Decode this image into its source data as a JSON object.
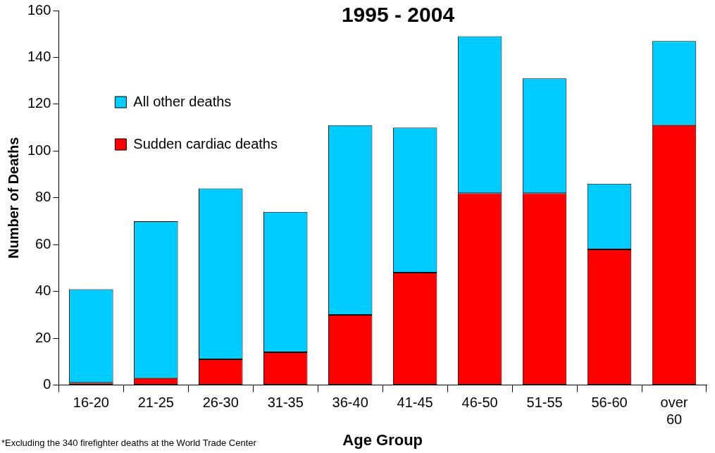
{
  "chart_data": {
    "type": "bar",
    "title": "1995 - 2004",
    "xlabel": "Age Group",
    "ylabel": "Number of Deaths",
    "categories": [
      "16-20",
      "21-25",
      "26-30",
      "31-35",
      "36-40",
      "41-45",
      "46-50",
      "51-55",
      "56-60",
      "over 60"
    ],
    "stacked": true,
    "series": [
      {
        "name": "Sudden cardiac deaths",
        "color": "#ff0000",
        "values": [
          1,
          3,
          11,
          14,
          30,
          48,
          82,
          82,
          58,
          111
        ]
      },
      {
        "name": "All other deaths",
        "color": "#00ccff",
        "values": [
          40,
          67,
          73,
          60,
          81,
          62,
          67,
          49,
          28,
          36
        ]
      }
    ],
    "ylim": [
      0,
      160
    ],
    "yticks": [
      0,
      20,
      40,
      60,
      80,
      100,
      120,
      140,
      160
    ],
    "grid": false,
    "legend": "top left",
    "annotations": [
      "*Excluding the 340 firefighter deaths at the World Trade Center"
    ]
  }
}
